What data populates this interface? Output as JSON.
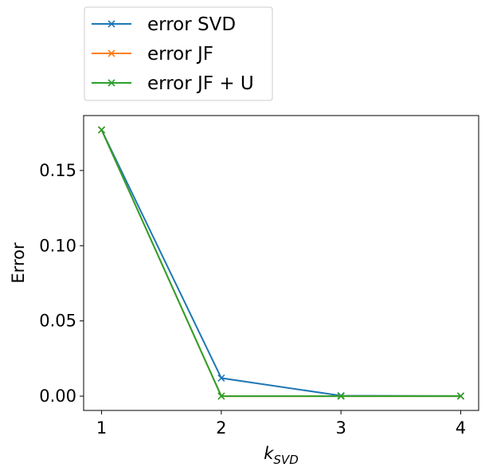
{
  "chart_data": {
    "type": "line",
    "xlabel": "k",
    "xlabel_subscript": "SVD",
    "ylabel": "Error",
    "x": [
      1,
      2,
      3,
      4
    ],
    "xlim": [
      0.85,
      4.15
    ],
    "ylim": [
      -0.0095,
      0.1865
    ],
    "xticks": [
      1,
      2,
      3,
      4
    ],
    "xtick_labels": [
      "1",
      "2",
      "3",
      "4"
    ],
    "yticks": [
      0.0,
      0.05,
      0.1,
      0.15
    ],
    "ytick_labels": [
      "0.00",
      "0.05",
      "0.10",
      "0.15"
    ],
    "grid": false,
    "legend_position": "above plot, left",
    "series": [
      {
        "name": "error SVD",
        "color": "#1f77b4",
        "marker": "x",
        "values": [
          0.177,
          0.012,
          0.0003,
          0.0001
        ]
      },
      {
        "name": "error JF",
        "color": "#ff7f0e",
        "marker": "x",
        "values": [
          0.177,
          0.0,
          0.0,
          0.0
        ]
      },
      {
        "name": "error JF + U",
        "color": "#2ca02c",
        "marker": "x",
        "values": [
          0.177,
          0.0,
          0.0,
          0.0
        ]
      }
    ]
  }
}
